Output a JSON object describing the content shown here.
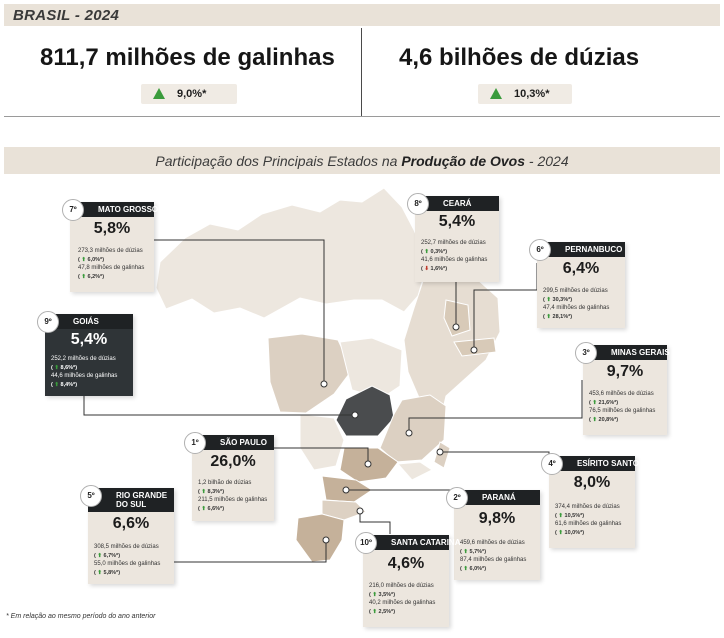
{
  "header": {
    "title": "BRASIL - 2024"
  },
  "stats": [
    {
      "value": "811,7 milhões de galinhas",
      "change": "9,0%*"
    },
    {
      "value": "4,6 bilhões de dúzias",
      "change": "10,3%*"
    }
  ],
  "subtitle": {
    "prefix": "Participação dos Principais Estados na ",
    "bold": "Produção de Ovos",
    "suffix": " - 2024"
  },
  "colors": {
    "band": "#e9e2d8",
    "card": "#ece6de",
    "dark": "#1f2224",
    "up": "#3a9b3c",
    "down": "#c0392b",
    "map_light": "#ede7df",
    "map_mid": "#dcd0c2",
    "map_accent": "#c5b19a",
    "goias": "#4a4c4e"
  },
  "states": {
    "mato_grosso": {
      "rank": "7º",
      "name": "MATO GROSSO",
      "share": "5,8%",
      "eggs": "273,3 milhões de dúzias",
      "eggs_change": "6,0%*",
      "hens": "47,8 milhões de galinhas",
      "hens_change": "6,2%*"
    },
    "goias": {
      "rank": "9º",
      "name": "GOIÁS",
      "share": "5,4%",
      "eggs": "252,2 milhões de dúzias",
      "eggs_change": "8,6%*",
      "hens": "44,6 milhões de galinhas",
      "hens_change": "8,4%*"
    },
    "ceara": {
      "rank": "8º",
      "name": "CEARÁ",
      "share": "5,4%",
      "eggs": "252,7 milhões de dúzias",
      "eggs_change": "0,3%*",
      "hens": "41,6 milhões de galinhas",
      "hens_change": "1,6%*"
    },
    "pernambuco": {
      "rank": "6º",
      "name": "PERNANBUCO",
      "share": "6,4%",
      "eggs": "299,5 milhões de dúzias",
      "eggs_change": "30,3%*",
      "hens": "47,4 milhões de galinhas",
      "hens_change": "28,1%*"
    },
    "minas_gerais": {
      "rank": "3º",
      "name": "MINAS GERAIS",
      "share": "9,7%",
      "eggs": "453,6 milhões de dúzias",
      "eggs_change": "21,6%*",
      "hens": "76,5 milhões de galinhas",
      "hens_change": "20,8%*"
    },
    "sao_paulo": {
      "rank": "1º",
      "name": "SÃO PAULO",
      "share": "26,0%",
      "eggs": "1,2 bilhão de dúzias",
      "eggs_change": "8,3%*",
      "hens": "211,5 milhões de galinhas",
      "hens_change": "6,6%*"
    },
    "espirito_santo": {
      "rank": "4º",
      "name": "ESÍRITO SANTO",
      "share": "8,0%",
      "eggs": "374,4 milhões de dúzias",
      "eggs_change": "10,5%*",
      "hens": "61,6 milhões de galinhas",
      "hens_change": "10,0%*"
    },
    "rio_grande_do_sul": {
      "rank": "5º",
      "name": "RIO GRANDE",
      "name2": "DO SUL",
      "share": "6,6%",
      "eggs": "308,5 milhões de dúzias",
      "eggs_change": "6,7%*",
      "hens": "55,0 milhões de galinhas",
      "hens_change": "5,8%*"
    },
    "parana": {
      "rank": "2º",
      "name": "PARANÁ",
      "share": "9,8%",
      "eggs": "459,6 milhões de dúzias",
      "eggs_change": "5,7%*",
      "hens": "87,4 milhões de galinhas",
      "hens_change": "6,0%*"
    },
    "santa_catarina": {
      "rank": "10º",
      "name": "SANTA CATARINA",
      "share": "4,6%",
      "eggs": "216,0 milhões de dúzias",
      "eggs_change": "3,5%*",
      "hens": "40,2 milhões de galinhas",
      "hens_change": "2,5%*"
    }
  },
  "arrows": {
    "up": "⬆",
    "down": "⬇"
  },
  "footnote": "* Em relação ao mesmo período do ano anterior"
}
